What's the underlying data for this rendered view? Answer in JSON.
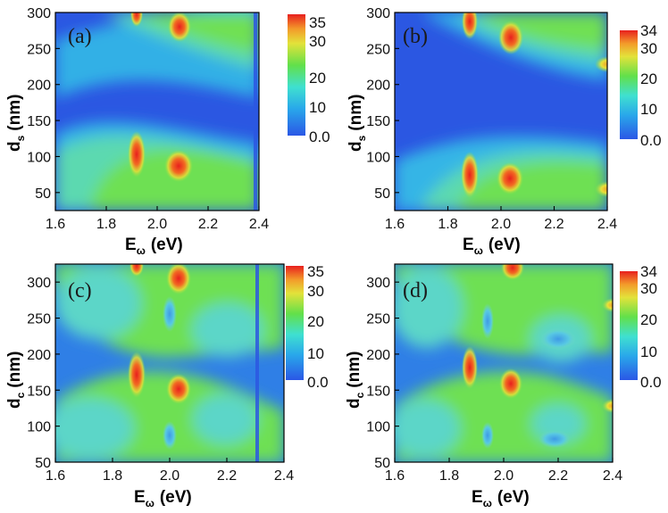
{
  "chart_data": [
    {
      "type": "heatmap",
      "panel_label": "(a)",
      "xlabel_main": "E",
      "xlabel_sub": "ω",
      "xlabel_unit": "(eV)",
      "ylabel_main": "d",
      "ylabel_sub": "s",
      "ylabel_unit": "(nm)",
      "xlim": [
        1.6,
        2.4
      ],
      "ylim": [
        25,
        300
      ],
      "xticks": [
        "1.6",
        "1.8",
        "2.0",
        "2.2",
        "2.4"
      ],
      "yticks": [
        "50",
        "100",
        "150",
        "200",
        "250",
        "300"
      ],
      "colorbar_ticks": [
        "0.0",
        "10",
        "20",
        "30",
        "35"
      ],
      "colorbar_range": [
        0,
        35
      ],
      "hotspots": [
        {
          "x": 1.885,
          "y": 105,
          "value": 34
        },
        {
          "x": 2.03,
          "y": 88,
          "value": 33
        },
        {
          "x": 1.885,
          "y": 298,
          "value": 32
        },
        {
          "x": 2.03,
          "y": 278,
          "value": 32
        }
      ],
      "notes": "vertical dark line near 2.31 eV"
    },
    {
      "type": "heatmap",
      "panel_label": "(b)",
      "xlabel_main": "E",
      "xlabel_sub": "ω",
      "xlabel_unit": "(eV)",
      "ylabel_main": "d",
      "ylabel_sub": "s",
      "ylabel_unit": "(nm)",
      "xlim": [
        1.6,
        2.4
      ],
      "ylim": [
        25,
        300
      ],
      "xticks": [
        "1.6",
        "1.8",
        "2.0",
        "2.2",
        "2.4"
      ],
      "yticks": [
        "50",
        "100",
        "150",
        "200",
        "250",
        "300"
      ],
      "colorbar_ticks": [
        "0.0",
        "10",
        "20",
        "30",
        "34"
      ],
      "colorbar_range": [
        0,
        34
      ],
      "hotspots": [
        {
          "x": 1.885,
          "y": 80,
          "value": 33
        },
        {
          "x": 2.03,
          "y": 75,
          "value": 33
        },
        {
          "x": 1.885,
          "y": 288,
          "value": 33
        },
        {
          "x": 2.03,
          "y": 268,
          "value": 32
        },
        {
          "x": 2.39,
          "y": 60,
          "value": 27
        },
        {
          "x": 2.39,
          "y": 228,
          "value": 26
        }
      ]
    },
    {
      "type": "heatmap",
      "panel_label": "(c)",
      "xlabel_main": "E",
      "xlabel_sub": "ω",
      "xlabel_unit": "(eV)",
      "ylabel_main": "d",
      "ylabel_sub": "c",
      "ylabel_unit": "(nm)",
      "xlim": [
        1.6,
        2.4
      ],
      "ylim": [
        50,
        325
      ],
      "xticks": [
        "1.6",
        "1.8",
        "2.0",
        "2.2",
        "2.4"
      ],
      "yticks": [
        "50",
        "100",
        "150",
        "200",
        "250",
        "300"
      ],
      "colorbar_ticks": [
        "0.0",
        "10",
        "20",
        "30",
        "35"
      ],
      "colorbar_range": [
        0,
        35
      ],
      "hotspots": [
        {
          "x": 1.885,
          "y": 172,
          "value": 34
        },
        {
          "x": 2.03,
          "y": 148,
          "value": 32
        },
        {
          "x": 2.03,
          "y": 308,
          "value": 32
        },
        {
          "x": 1.885,
          "y": 325,
          "value": 31
        }
      ],
      "notes": "vertical dark line near 2.31 eV"
    },
    {
      "type": "heatmap",
      "panel_label": "(d)",
      "xlabel_main": "E",
      "xlabel_sub": "ω",
      "xlabel_unit": "(eV)",
      "ylabel_main": "d",
      "ylabel_sub": "c",
      "ylabel_unit": "(nm)",
      "xlim": [
        1.6,
        2.4
      ],
      "ylim": [
        50,
        325
      ],
      "xticks": [
        "1.6",
        "1.8",
        "2.0",
        "2.2",
        "2.4"
      ],
      "yticks": [
        "50",
        "100",
        "150",
        "200",
        "250",
        "300"
      ],
      "colorbar_ticks": [
        "0.0",
        "10",
        "20",
        "30",
        "34"
      ],
      "colorbar_range": [
        0,
        34
      ],
      "hotspots": [
        {
          "x": 1.885,
          "y": 178,
          "value": 33
        },
        {
          "x": 2.03,
          "y": 158,
          "value": 32
        },
        {
          "x": 2.03,
          "y": 318,
          "value": 32
        },
        {
          "x": 2.39,
          "y": 125,
          "value": 25
        },
        {
          "x": 2.39,
          "y": 262,
          "value": 25
        }
      ]
    }
  ],
  "colors": {
    "low": "#2a5fe0",
    "mid_low": "#2fb6e6",
    "mid": "#5ce05a",
    "mid_high": "#e6e23a",
    "high": "#e8281e"
  }
}
